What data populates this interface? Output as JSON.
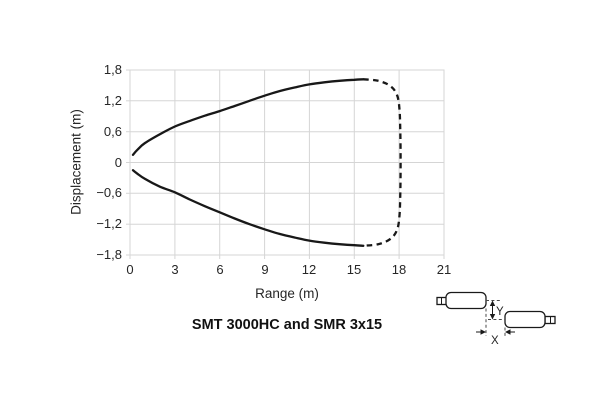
{
  "colors": {
    "curve": "#181818",
    "grid": "#d5d5d5",
    "text": "#262626",
    "background": "#ffffff"
  },
  "chart_data": {
    "type": "line",
    "title": "SMT 3000HC and SMR 3x15",
    "xlabel": "Range (m)",
    "ylabel": "Displacement (m)",
    "xlim": [
      0,
      21
    ],
    "ylim": [
      -1.8,
      1.8
    ],
    "grid": true,
    "legend": false,
    "x_tick_values": [
      0,
      3,
      6,
      9,
      12,
      15,
      18,
      21
    ],
    "x_tick_labels": [
      "0",
      "3",
      "6",
      "9",
      "12",
      "15",
      "18",
      "21"
    ],
    "y_tick_values": [
      1.8,
      1.2,
      0.6,
      0,
      -0.6,
      -1.2,
      -1.8
    ],
    "y_tick_labels": [
      "1,8",
      "1,2",
      "0,6",
      "0",
      "−0,6",
      "−1,2",
      "−1,8"
    ],
    "series": [
      {
        "name": "beam-boundary-upper",
        "style": "solid",
        "points": [
          [
            0.2,
            0.15
          ],
          [
            0.5,
            0.25
          ],
          [
            1,
            0.38
          ],
          [
            2,
            0.55
          ],
          [
            3,
            0.7
          ],
          [
            4,
            0.81
          ],
          [
            5,
            0.91
          ],
          [
            6,
            1.0
          ],
          [
            7,
            1.1
          ],
          [
            8,
            1.2
          ],
          [
            9,
            1.3
          ],
          [
            10,
            1.39
          ],
          [
            11,
            1.46
          ],
          [
            12,
            1.52
          ],
          [
            13,
            1.56
          ],
          [
            14,
            1.59
          ],
          [
            15,
            1.61
          ],
          [
            15.6,
            1.62
          ]
        ]
      },
      {
        "name": "beam-boundary-far-limit",
        "style": "dashed",
        "points": [
          [
            15.6,
            1.62
          ],
          [
            16.6,
            1.59
          ],
          [
            17.4,
            1.49
          ],
          [
            17.85,
            1.32
          ],
          [
            18.02,
            1.05
          ],
          [
            18.08,
            0.6
          ],
          [
            18.1,
            0
          ],
          [
            18.08,
            -0.6
          ],
          [
            18.02,
            -1.05
          ],
          [
            17.85,
            -1.32
          ],
          [
            17.4,
            -1.49
          ],
          [
            16.6,
            -1.59
          ],
          [
            15.6,
            -1.62
          ]
        ]
      },
      {
        "name": "beam-boundary-lower",
        "style": "solid",
        "points": [
          [
            15.6,
            -1.62
          ],
          [
            15,
            -1.61
          ],
          [
            14,
            -1.59
          ],
          [
            13,
            -1.56
          ],
          [
            12,
            -1.52
          ],
          [
            11,
            -1.46
          ],
          [
            10,
            -1.39
          ],
          [
            9,
            -1.3
          ],
          [
            8,
            -1.2
          ],
          [
            7,
            -1.09
          ],
          [
            6,
            -0.97
          ],
          [
            5,
            -0.85
          ],
          [
            4,
            -0.72
          ],
          [
            3,
            -0.58
          ],
          [
            2,
            -0.47
          ],
          [
            1,
            -0.32
          ],
          [
            0.5,
            -0.22
          ],
          [
            0.2,
            -0.15
          ]
        ]
      }
    ]
  },
  "inset_diagram": {
    "x_label": "X",
    "y_label": "Y"
  }
}
